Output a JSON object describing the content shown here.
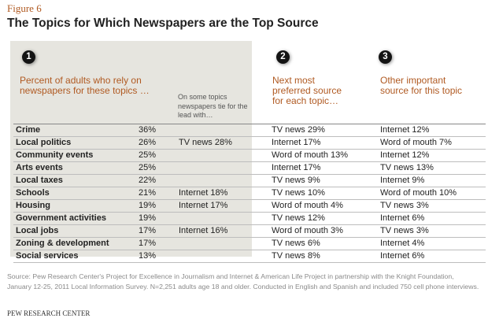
{
  "figure_label": "Figure 6",
  "title": "The Topics for Which Newspapers are the Top Source",
  "columns": {
    "col1": {
      "number": "1",
      "header": "Percent of adults who rely on newspapers for these topics …"
    },
    "tie": {
      "header": "On some topics newspapers tie for the lead with…"
    },
    "col2": {
      "number": "2",
      "header": "Next most preferred source for each topic…"
    },
    "col3": {
      "number": "3",
      "header": "Other important source for this topic"
    }
  },
  "rows": [
    {
      "topic": "Crime",
      "pct": "36%",
      "tie": "",
      "next": "TV news 29%",
      "other": "Internet 12%"
    },
    {
      "topic": "Local politics",
      "pct": "26%",
      "tie": "TV news 28%",
      "next": "Internet 17%",
      "other": "Word of mouth 7%"
    },
    {
      "topic": "Community events",
      "pct": "25%",
      "tie": "",
      "next": "Word of mouth 13%",
      "other": "Internet 12%"
    },
    {
      "topic": "Arts events",
      "pct": "25%",
      "tie": "",
      "next": "Internet 17%",
      "other": "TV news 13%"
    },
    {
      "topic": "Local taxes",
      "pct": "22%",
      "tie": "",
      "next": "TV news 9%",
      "other": "Internet 9%"
    },
    {
      "topic": "Schools",
      "pct": "21%",
      "tie": "Internet 18%",
      "next": "TV news 10%",
      "other": "Word of mouth 10%"
    },
    {
      "topic": "Housing",
      "pct": "19%",
      "tie": "Internet 17%",
      "next": "Word of mouth 4%",
      "other": "TV news 3%"
    },
    {
      "topic": "Government activities",
      "pct": "19%",
      "tie": "",
      "next": "TV news 12%",
      "other": "Internet 6%"
    },
    {
      "topic": "Local jobs",
      "pct": "17%",
      "tie": "Internet 16%",
      "next": "Word of mouth 3%",
      "other": "TV news 3%"
    },
    {
      "topic": "Zoning & development",
      "pct": "17%",
      "tie": "",
      "next": "TV news 6%",
      "other": "Internet 4%"
    },
    {
      "topic": "Social services",
      "pct": "13%",
      "tie": "",
      "next": "TV news 8%",
      "other": "Internet 6%"
    }
  ],
  "source": "Source: Pew Research Center's Project for Excellence in Journalism and Internet & American Life Project in partnership with the Knight Foundation, January 12-25, 2011 Local Information Survey. N=2,251 adults age 18 and older. Conducted in English and Spanish and included 750 cell phone interviews.",
  "credit": "PEW RESEARCH CENTER",
  "colors": {
    "accent": "#b05a22",
    "panel": "#e6e5df",
    "badge": "#141414"
  }
}
